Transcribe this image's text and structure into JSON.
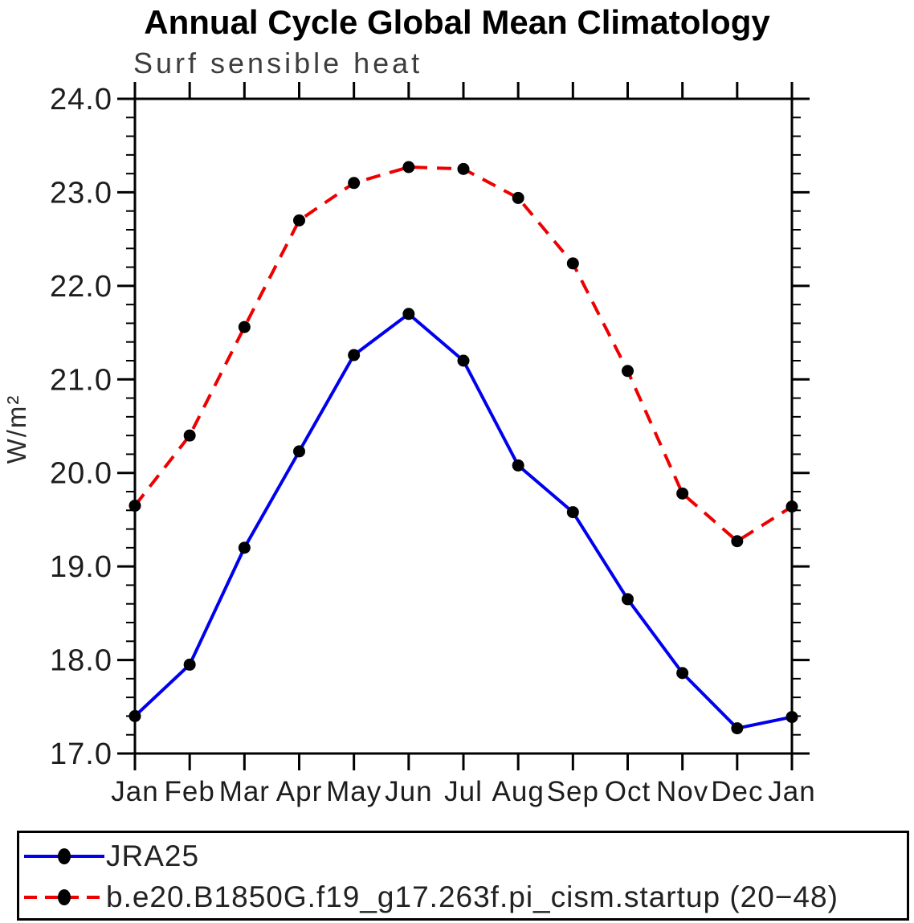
{
  "chart_data": {
    "type": "line",
    "title": "Annual Cycle Global Mean Climatology",
    "subtitle": "Surf sensible heat",
    "xlabel": "",
    "ylabel": "W/m²",
    "categories": [
      "Jan",
      "Feb",
      "Mar",
      "Apr",
      "May",
      "Jun",
      "Jul",
      "Aug",
      "Sep",
      "Oct",
      "Nov",
      "Dec",
      "Jan"
    ],
    "ylim": [
      17.0,
      24.0
    ],
    "ytick_step": 1.0,
    "ytick_minor_step": 0.2,
    "ytick_labels": [
      "17.0",
      "18.0",
      "19.0",
      "20.0",
      "21.0",
      "22.0",
      "23.0",
      "24.0"
    ],
    "grid": false,
    "legend_position": "bottom",
    "axis_color": "#000000",
    "marker_color": "#000000",
    "series": [
      {
        "name": "JRA25",
        "color": "#0000ee",
        "style": "solid",
        "marker": "circle",
        "values": [
          17.4,
          17.95,
          19.2,
          20.23,
          21.26,
          21.7,
          21.2,
          20.08,
          19.58,
          18.65,
          17.86,
          17.27,
          17.39
        ]
      },
      {
        "name": "b.e20.B1850G.f19_g17.263f.pi_cism.startup (20−48)",
        "color": "#ee0000",
        "style": "dashed",
        "marker": "circle",
        "values": [
          19.65,
          20.4,
          21.56,
          22.7,
          23.1,
          23.27,
          23.25,
          22.94,
          22.24,
          21.09,
          19.78,
          19.27,
          19.64
        ]
      }
    ]
  }
}
